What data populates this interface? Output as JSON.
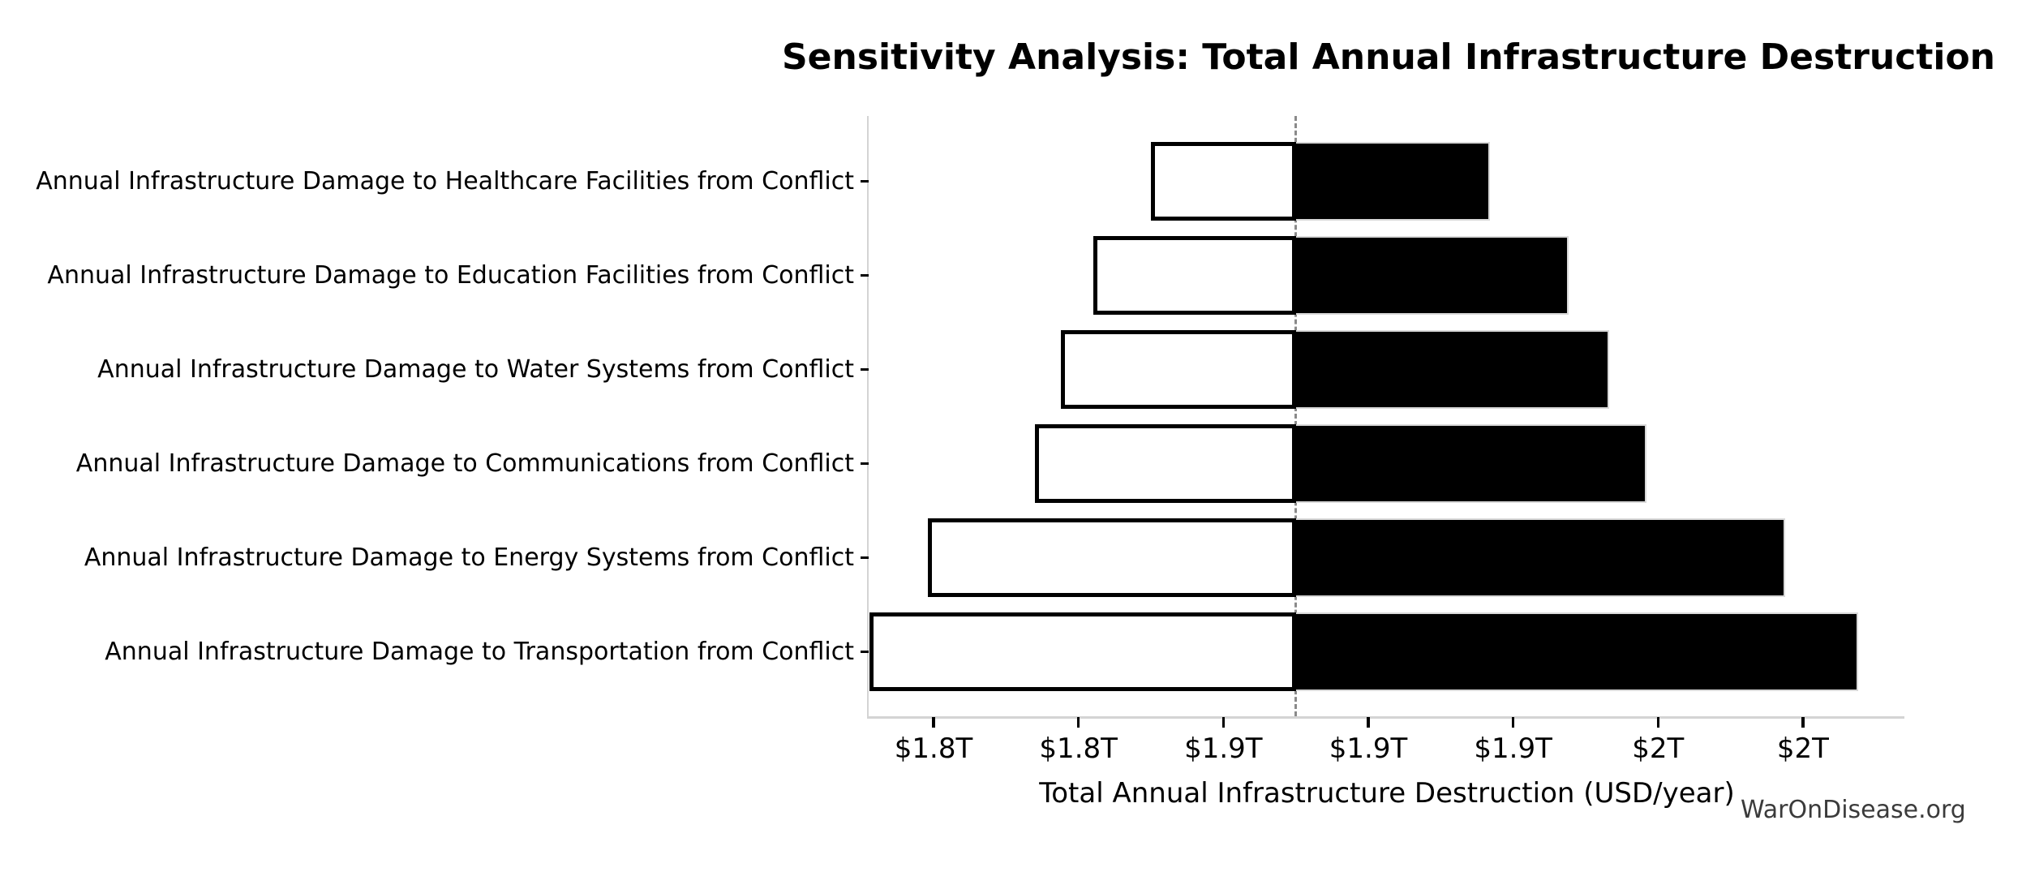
{
  "chart_data": {
    "type": "bar",
    "subtype": "tornado-sensitivity",
    "title": "Sensitivity Analysis: Total Annual Infrastructure Destruction",
    "xlabel": "Total Annual Infrastructure Destruction (USD/year)",
    "watermark": "WarOnDisease.org",
    "unit": "trillion USD per year",
    "baseline": 1.875,
    "xlim": [
      1.7276,
      2.085
    ],
    "grid": false,
    "legend": "none",
    "x_ticks": [
      {
        "value": 1.75,
        "label": "$1.8T"
      },
      {
        "value": 1.8,
        "label": "$1.8T"
      },
      {
        "value": 1.85,
        "label": "$1.9T"
      },
      {
        "value": 1.9,
        "label": "$1.9T"
      },
      {
        "value": 1.95,
        "label": "$1.9T"
      },
      {
        "value": 2.0,
        "label": "$2T"
      },
      {
        "value": 2.05,
        "label": "$2T"
      }
    ],
    "categories": [
      {
        "label": "Annual Infrastructure Damage to Healthcare Facilities from Conflict",
        "low": 1.825,
        "high": 1.942
      },
      {
        "label": "Annual Infrastructure Damage to Education Facilities from Conflict",
        "low": 1.805,
        "high": 1.969
      },
      {
        "label": "Annual Infrastructure Damage to Water Systems from Conflict",
        "low": 1.794,
        "high": 1.983
      },
      {
        "label": "Annual Infrastructure Damage to Communications from Conflict",
        "low": 1.785,
        "high": 1.996
      },
      {
        "label": "Annual Infrastructure Damage to Energy Systems from Conflict",
        "low": 1.748,
        "high": 2.044
      },
      {
        "label": "Annual Infrastructure Damage to Transportation from Conflict",
        "low": 1.728,
        "high": 2.069
      }
    ],
    "colors": {
      "low_bar_fill": "#ffffff",
      "low_bar_edge": "#000000",
      "high_bar_fill": "#000000",
      "high_bar_edge": "#d9d9d9",
      "baseline_line": "#8a8a8a",
      "spine": "#d4d4d4",
      "tick": "#000000",
      "text": "#000000",
      "watermark_text": "#3b3b3b"
    }
  }
}
